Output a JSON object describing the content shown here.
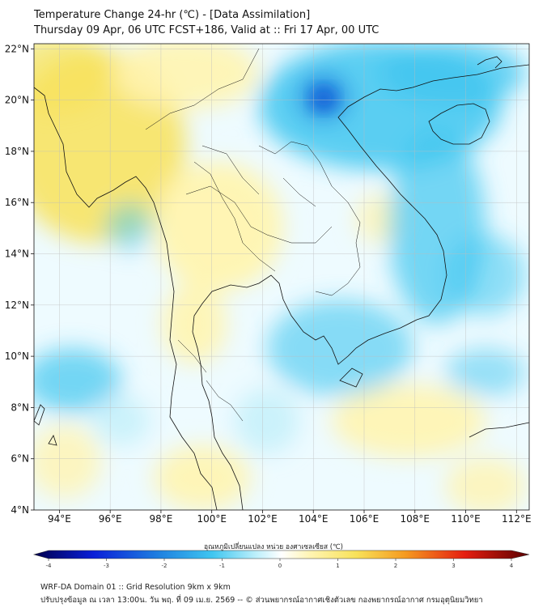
{
  "title": {
    "line1": "Temperature Change 24-hr (℃) - [Data Assimilation]",
    "line2": "Thursday 09 Apr, 06 UTC FCST+186, Valid at :: Fri 17 Apr, 00 UTC"
  },
  "map": {
    "lon_range": [
      93,
      112.5
    ],
    "lat_range": [
      4,
      22.2
    ],
    "lon_ticks": [
      "94°E",
      "96°E",
      "98°E",
      "100°E",
      "102°E",
      "104°E",
      "106°E",
      "108°E",
      "110°E",
      "112°E"
    ],
    "lat_ticks": [
      "22°N",
      "20°N",
      "18°N",
      "16°N",
      "14°N",
      "12°N",
      "10°N",
      "8°N",
      "6°N",
      "4°N"
    ],
    "field_anomalies": [
      {
        "name": "warm-myanmar",
        "sign": "warm",
        "lon": 96.5,
        "lat": 17.5
      },
      {
        "name": "warm-north-myanmar",
        "sign": "warm",
        "lon": 95.5,
        "lat": 21.0
      },
      {
        "name": "warm-central-thailand",
        "sign": "warm",
        "lon": 100.5,
        "lat": 14.5
      },
      {
        "name": "warm-south-china-sea",
        "sign": "warm",
        "lon": 107.5,
        "lat": 7.5
      },
      {
        "name": "warm-andaman-south",
        "sign": "warm",
        "lon": 99.5,
        "lat": 5.5
      },
      {
        "name": "cool-north-vietnam",
        "sign": "cool",
        "lon": 104.8,
        "lat": 20.0
      },
      {
        "name": "cool-laos",
        "sign": "cool",
        "lon": 106.5,
        "lat": 17.5
      },
      {
        "name": "cool-gulf-thailand",
        "sign": "cool",
        "lon": 104.5,
        "lat": 10.0
      },
      {
        "name": "cool-andaman",
        "sign": "cool",
        "lon": 95.5,
        "lat": 9.0
      },
      {
        "name": "cool-south-china-sea",
        "sign": "cool",
        "lon": 110.0,
        "lat": 12.0
      }
    ]
  },
  "colorbar": {
    "label": "อุณหภูมิเปลี่ยนแปลง หน่วย องศาเซลเซียส (℃)",
    "ticks": [
      "-4",
      "-3",
      "-2",
      "-1",
      "0",
      "1",
      "2",
      "3",
      "4"
    ],
    "min": -4,
    "max": 4
  },
  "footer": {
    "line1": "WRF-DA Domain 01 :: Grid Resolution 9km x 9km",
    "line2": "ปรับปรุงข้อมูล ณ เวลา 13:00น. วัน พฤ. ที่ 09 เม.ย. 2569 -- © ส่วนพยากรณ์อากาศเชิงตัวเลข กองพยากรณ์อากาศ กรมอุตุนิยมวิทยา"
  },
  "colors": {
    "cool_deep": "#1e7fe0",
    "cool": "#3fc6f0",
    "cool_light": "#c6f1fb",
    "neutral": "#ffffff",
    "warm_light": "#fff4b0",
    "warm": "#f8e25a",
    "coast": "#111111"
  }
}
